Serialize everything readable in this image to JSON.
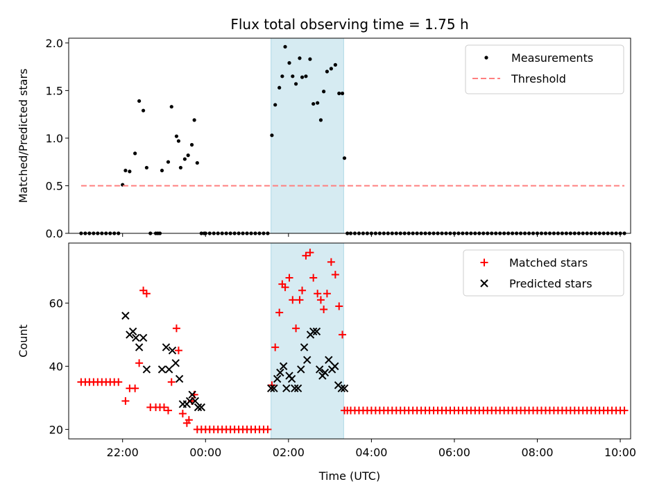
{
  "chart_data": [
    {
      "type": "scatter",
      "title": "Flux total observing time = 1.75 h",
      "xlabel": "",
      "ylabel": "Matched/Predicted stars",
      "ylim": [
        0,
        2.05
      ],
      "yticks": [
        0.0,
        0.5,
        1.0,
        1.5,
        2.0
      ],
      "ytick_labels": [
        "0.0",
        "0.5",
        "1.0",
        "1.5",
        "2.0"
      ],
      "xlim_hours": [
        20.7,
        34.25
      ],
      "xticks_hours": [
        22,
        24,
        26,
        28,
        30,
        32,
        34
      ],
      "shaded_span_hours": [
        25.58,
        27.33
      ],
      "shade_color": "#add8e6",
      "legend_position": "upper right",
      "series": [
        {
          "name": "Measurements",
          "marker": "dot",
          "color": "#000000",
          "x": [
            21.0,
            21.1,
            21.2,
            21.3,
            21.4,
            21.5,
            21.6,
            21.7,
            21.8,
            21.9,
            22.0,
            22.07,
            22.17,
            22.3,
            22.4,
            22.5,
            22.58,
            22.67,
            22.8,
            22.85,
            22.9,
            22.95,
            23.1,
            23.18,
            23.3,
            23.35,
            23.4,
            23.5,
            23.58,
            23.67,
            23.73,
            23.8,
            23.9,
            23.97,
            24.0,
            24.1,
            24.2,
            24.3,
            24.4,
            24.5,
            24.6,
            24.7,
            24.8,
            24.9,
            25.0,
            25.1,
            25.2,
            25.3,
            25.4,
            25.5,
            25.6,
            25.68,
            25.78,
            25.85,
            25.92,
            26.02,
            26.1,
            26.18,
            26.27,
            26.33,
            26.42,
            26.52,
            26.6,
            26.7,
            26.78,
            26.85,
            26.93,
            27.03,
            27.13,
            27.22,
            27.3,
            27.35,
            27.42,
            27.5,
            27.6,
            27.7,
            27.8,
            27.9,
            28.0,
            28.1,
            28.2,
            28.3,
            28.4,
            28.5,
            28.6,
            28.7,
            28.8,
            28.9,
            29.0,
            29.1,
            29.2,
            29.3,
            29.4,
            29.5,
            29.6,
            29.7,
            29.8,
            29.9,
            30.0,
            30.1,
            30.2,
            30.3,
            30.4,
            30.5,
            30.6,
            30.7,
            30.8,
            30.9,
            31.0,
            31.1,
            31.2,
            31.3,
            31.4,
            31.5,
            31.6,
            31.7,
            31.8,
            31.9,
            32.0,
            32.1,
            32.2,
            32.3,
            32.4,
            32.5,
            32.6,
            32.7,
            32.8,
            32.9,
            33.0,
            33.1,
            33.2,
            33.3,
            33.4,
            33.5,
            33.6,
            33.7,
            33.8,
            33.9,
            34.0,
            34.1
          ],
          "y": [
            0,
            0,
            0,
            0,
            0,
            0,
            0,
            0,
            0,
            0,
            0.51,
            0.66,
            0.65,
            0.84,
            1.39,
            1.29,
            0.69,
            0,
            0,
            0,
            0,
            0.66,
            0.75,
            1.33,
            1.02,
            0.97,
            0.69,
            0.78,
            0.82,
            0.93,
            1.19,
            0.74,
            0,
            0,
            0,
            0,
            0,
            0,
            0,
            0,
            0,
            0,
            0,
            0,
            0,
            0,
            0,
            0,
            0,
            0,
            1.03,
            1.35,
            1.53,
            1.65,
            1.96,
            1.79,
            1.65,
            1.57,
            1.84,
            1.64,
            1.65,
            1.83,
            1.36,
            1.37,
            1.19,
            1.49,
            1.7,
            1.73,
            1.77,
            1.47,
            1.47,
            0.79,
            0,
            0,
            0,
            0,
            0,
            0,
            0,
            0,
            0,
            0,
            0,
            0,
            0,
            0,
            0,
            0,
            0,
            0,
            0,
            0,
            0,
            0,
            0,
            0,
            0,
            0,
            0,
            0,
            0,
            0,
            0,
            0,
            0,
            0,
            0,
            0,
            0,
            0,
            0,
            0,
            0,
            0,
            0,
            0,
            0,
            0,
            0,
            0,
            0,
            0,
            0,
            0,
            0,
            0,
            0,
            0,
            0,
            0,
            0,
            0,
            0,
            0,
            0,
            0,
            0,
            0,
            0,
            0
          ]
        },
        {
          "name": "Threshold",
          "marker": "dashed-line",
          "color": "#ff7f7f",
          "x": [
            21.0,
            34.1
          ],
          "y": [
            0.5,
            0.5
          ]
        }
      ]
    },
    {
      "type": "scatter",
      "title": "",
      "xlabel": "Time (UTC)",
      "ylabel": "Count",
      "ylim": [
        17,
        79
      ],
      "yticks": [
        20,
        40,
        60
      ],
      "ytick_labels": [
        "20",
        "40",
        "60"
      ],
      "xlim_hours": [
        20.7,
        34.25
      ],
      "xticks_hours": [
        22,
        24,
        26,
        28,
        30,
        32,
        34
      ],
      "xtick_labels": [
        "22:00",
        "00:00",
        "02:00",
        "04:00",
        "06:00",
        "08:00",
        "10:00"
      ],
      "shaded_span_hours": [
        25.58,
        27.33
      ],
      "shade_color": "#add8e6",
      "legend_position": "upper right",
      "series": [
        {
          "name": "Matched stars",
          "marker": "plus",
          "color": "#ff0000",
          "x": [
            21.0,
            21.1,
            21.2,
            21.3,
            21.4,
            21.5,
            21.6,
            21.7,
            21.8,
            21.9,
            22.07,
            22.17,
            22.3,
            22.4,
            22.5,
            22.58,
            22.67,
            22.8,
            22.9,
            23.0,
            23.1,
            23.18,
            23.3,
            23.35,
            23.45,
            23.55,
            23.6,
            23.67,
            23.73,
            23.8,
            23.9,
            24.0,
            24.1,
            24.2,
            24.3,
            24.4,
            24.5,
            24.6,
            24.7,
            24.8,
            24.9,
            25.0,
            25.1,
            25.2,
            25.3,
            25.4,
            25.5,
            25.6,
            25.68,
            25.78,
            25.85,
            25.92,
            26.02,
            26.1,
            26.18,
            26.27,
            26.33,
            26.42,
            26.52,
            26.6,
            26.7,
            26.78,
            26.85,
            26.93,
            27.03,
            27.13,
            27.22,
            27.3,
            27.35,
            27.42,
            27.5,
            27.6,
            27.7,
            27.8,
            27.9,
            28.0,
            28.1,
            28.2,
            28.3,
            28.4,
            28.5,
            28.6,
            28.7,
            28.8,
            28.9,
            29.0,
            29.1,
            29.2,
            29.3,
            29.4,
            29.5,
            29.6,
            29.7,
            29.8,
            29.9,
            30.0,
            30.1,
            30.2,
            30.3,
            30.4,
            30.5,
            30.6,
            30.7,
            30.8,
            30.9,
            31.0,
            31.1,
            31.2,
            31.3,
            31.4,
            31.5,
            31.6,
            31.7,
            31.8,
            31.9,
            32.0,
            32.1,
            32.2,
            32.3,
            32.4,
            32.5,
            32.6,
            32.7,
            32.8,
            32.9,
            33.0,
            33.1,
            33.2,
            33.3,
            33.4,
            33.5,
            33.6,
            33.7,
            33.8,
            33.9,
            34.0,
            34.1
          ],
          "y": [
            35,
            35,
            35,
            35,
            35,
            35,
            35,
            35,
            35,
            35,
            29,
            33,
            33,
            41,
            64,
            63,
            27,
            27,
            27,
            27,
            26,
            35,
            52,
            45,
            25,
            22,
            23,
            29,
            31,
            20,
            20,
            20,
            20,
            20,
            20,
            20,
            20,
            20,
            20,
            20,
            20,
            20,
            20,
            20,
            20,
            20,
            20,
            34,
            46,
            57,
            66,
            65,
            68,
            61,
            52,
            61,
            64,
            75,
            76,
            68,
            63,
            61,
            58,
            63,
            73,
            69,
            59,
            50,
            26,
            26,
            26,
            26,
            26,
            26,
            26,
            26,
            26,
            26,
            26,
            26,
            26,
            26,
            26,
            26,
            26,
            26,
            26,
            26,
            26,
            26,
            26,
            26,
            26,
            26,
            26,
            26,
            26,
            26,
            26,
            26,
            26,
            26,
            26,
            26,
            26,
            26,
            26,
            26,
            26,
            26,
            26,
            26,
            26,
            26,
            26,
            26,
            26,
            26,
            26,
            26,
            26,
            26,
            26,
            26,
            26,
            26,
            26,
            26,
            26,
            26,
            26,
            26,
            26,
            26,
            26,
            26,
            26
          ]
        },
        {
          "name": "Predicted stars",
          "marker": "x",
          "color": "#000000",
          "x": [
            22.07,
            22.17,
            22.25,
            22.32,
            22.4,
            22.5,
            22.58,
            22.95,
            23.05,
            23.12,
            23.2,
            23.28,
            23.37,
            23.45,
            23.55,
            23.62,
            23.68,
            23.75,
            23.82,
            23.9,
            25.58,
            25.65,
            25.73,
            25.8,
            25.88,
            25.95,
            26.02,
            26.08,
            26.15,
            26.23,
            26.3,
            26.38,
            26.45,
            26.53,
            26.6,
            26.68,
            26.75,
            26.82,
            26.88,
            26.97,
            27.05,
            27.12,
            27.2,
            27.28,
            27.35
          ],
          "y": [
            56,
            50,
            51,
            49,
            46,
            49,
            39,
            39,
            46,
            39,
            45,
            41,
            36,
            28,
            28,
            29,
            31,
            29,
            27,
            27,
            33,
            33,
            36,
            38,
            40,
            33,
            37,
            36,
            33,
            33,
            39,
            46,
            42,
            50,
            51,
            51,
            39,
            37,
            38,
            42,
            39,
            40,
            34,
            33,
            33
          ]
        }
      ]
    }
  ]
}
